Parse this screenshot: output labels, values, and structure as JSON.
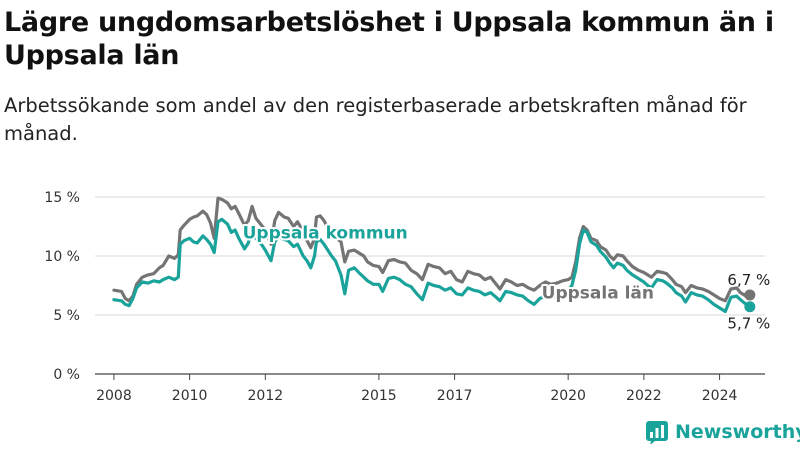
{
  "title": "Lägre ungdomsarbetslöshet i Uppsala kommun än i Uppsala län",
  "subtitle": "Arbetssökande som andel av den registerbaserade arbetskraften månad för månad.",
  "brand": {
    "name": "Newsworthy",
    "color": "#1aa39b"
  },
  "chart_data": {
    "type": "line",
    "x_unit": "year",
    "x_ticks": [
      "2008",
      "2010",
      "2012",
      "2015",
      "2017",
      "2020",
      "2022",
      "2024"
    ],
    "y_ticks": [
      "0 %",
      "5 %",
      "10 %",
      "15 %"
    ],
    "ylim": [
      0,
      15
    ],
    "xlim": [
      2007.5,
      2025.2
    ],
    "grid": true,
    "series": [
      {
        "name": "Uppsala län",
        "color": "#747474",
        "end_label": "6,7 %",
        "points": [
          [
            2008.0,
            7.1
          ],
          [
            2008.2,
            7.0
          ],
          [
            2008.3,
            6.4
          ],
          [
            2008.4,
            6.2
          ],
          [
            2008.5,
            6.6
          ],
          [
            2008.6,
            7.6
          ],
          [
            2008.75,
            8.2
          ],
          [
            2008.9,
            8.4
          ],
          [
            2009.05,
            8.5
          ],
          [
            2009.2,
            9.0
          ],
          [
            2009.3,
            9.2
          ],
          [
            2009.45,
            10.0
          ],
          [
            2009.6,
            9.8
          ],
          [
            2009.7,
            10.1
          ],
          [
            2009.75,
            12.2
          ],
          [
            2009.85,
            12.6
          ],
          [
            2010.0,
            13.1
          ],
          [
            2010.1,
            13.3
          ],
          [
            2010.2,
            13.4
          ],
          [
            2010.35,
            13.8
          ],
          [
            2010.45,
            13.5
          ],
          [
            2010.55,
            12.8
          ],
          [
            2010.65,
            11.5
          ],
          [
            2010.75,
            14.9
          ],
          [
            2010.85,
            14.8
          ],
          [
            2011.0,
            14.5
          ],
          [
            2011.1,
            14.0
          ],
          [
            2011.2,
            14.2
          ],
          [
            2011.3,
            13.6
          ],
          [
            2011.45,
            12.6
          ],
          [
            2011.55,
            13.0
          ],
          [
            2011.65,
            14.2
          ],
          [
            2011.75,
            13.2
          ],
          [
            2011.85,
            12.8
          ],
          [
            2012.0,
            12.2
          ],
          [
            2012.15,
            11.0
          ],
          [
            2012.25,
            13.0
          ],
          [
            2012.35,
            13.7
          ],
          [
            2012.5,
            13.3
          ],
          [
            2012.6,
            13.2
          ],
          [
            2012.75,
            12.5
          ],
          [
            2012.85,
            12.9
          ],
          [
            2013.0,
            12.1
          ],
          [
            2013.1,
            11.3
          ],
          [
            2013.2,
            10.7
          ],
          [
            2013.3,
            11.5
          ],
          [
            2013.35,
            13.3
          ],
          [
            2013.45,
            13.4
          ],
          [
            2013.55,
            13.0
          ],
          [
            2013.65,
            12.4
          ],
          [
            2013.75,
            12.0
          ],
          [
            2013.85,
            11.6
          ],
          [
            2014.0,
            11.2
          ],
          [
            2014.1,
            9.5
          ],
          [
            2014.2,
            10.4
          ],
          [
            2014.35,
            10.5
          ],
          [
            2014.5,
            10.2
          ],
          [
            2014.6,
            10.0
          ],
          [
            2014.7,
            9.5
          ],
          [
            2014.85,
            9.2
          ],
          [
            2015.0,
            9.1
          ],
          [
            2015.1,
            8.6
          ],
          [
            2015.25,
            9.6
          ],
          [
            2015.4,
            9.7
          ],
          [
            2015.55,
            9.5
          ],
          [
            2015.7,
            9.4
          ],
          [
            2015.85,
            8.8
          ],
          [
            2016.0,
            8.5
          ],
          [
            2016.15,
            8.0
          ],
          [
            2016.3,
            9.3
          ],
          [
            2016.45,
            9.1
          ],
          [
            2016.6,
            9.0
          ],
          [
            2016.75,
            8.5
          ],
          [
            2016.9,
            8.7
          ],
          [
            2017.05,
            8.0
          ],
          [
            2017.2,
            7.8
          ],
          [
            2017.35,
            8.7
          ],
          [
            2017.5,
            8.5
          ],
          [
            2017.65,
            8.4
          ],
          [
            2017.8,
            8.0
          ],
          [
            2017.95,
            8.2
          ],
          [
            2018.1,
            7.6
          ],
          [
            2018.2,
            7.2
          ],
          [
            2018.35,
            8.0
          ],
          [
            2018.5,
            7.8
          ],
          [
            2018.65,
            7.5
          ],
          [
            2018.8,
            7.6
          ],
          [
            2018.95,
            7.3
          ],
          [
            2019.1,
            7.1
          ],
          [
            2019.25,
            7.5
          ],
          [
            2019.4,
            7.8
          ],
          [
            2019.55,
            7.6
          ],
          [
            2019.7,
            7.7
          ],
          [
            2019.85,
            7.9
          ],
          [
            2020.0,
            8.0
          ],
          [
            2020.1,
            8.2
          ],
          [
            2020.2,
            9.5
          ],
          [
            2020.3,
            11.5
          ],
          [
            2020.4,
            12.5
          ],
          [
            2020.5,
            12.2
          ],
          [
            2020.6,
            11.5
          ],
          [
            2020.75,
            11.3
          ],
          [
            2020.85,
            10.8
          ],
          [
            2021.0,
            10.5
          ],
          [
            2021.1,
            10.0
          ],
          [
            2021.2,
            9.7
          ],
          [
            2021.3,
            10.1
          ],
          [
            2021.45,
            10.0
          ],
          [
            2021.55,
            9.6
          ],
          [
            2021.7,
            9.1
          ],
          [
            2021.85,
            8.8
          ],
          [
            2022.0,
            8.6
          ],
          [
            2022.1,
            8.4
          ],
          [
            2022.2,
            8.2
          ],
          [
            2022.35,
            8.7
          ],
          [
            2022.5,
            8.6
          ],
          [
            2022.6,
            8.5
          ],
          [
            2022.75,
            8.0
          ],
          [
            2022.85,
            7.6
          ],
          [
            2023.0,
            7.4
          ],
          [
            2023.1,
            6.9
          ],
          [
            2023.25,
            7.5
          ],
          [
            2023.4,
            7.3
          ],
          [
            2023.55,
            7.2
          ],
          [
            2023.7,
            7.0
          ],
          [
            2023.85,
            6.7
          ],
          [
            2024.0,
            6.4
          ],
          [
            2024.15,
            6.2
          ],
          [
            2024.3,
            7.2
          ],
          [
            2024.45,
            7.3
          ],
          [
            2024.55,
            6.9
          ],
          [
            2024.7,
            6.6
          ],
          [
            2024.8,
            6.7
          ]
        ]
      },
      {
        "name": "Uppsala kommun",
        "color": "#1aa39b",
        "end_label": "5,7 %",
        "points": [
          [
            2008.0,
            6.3
          ],
          [
            2008.2,
            6.2
          ],
          [
            2008.3,
            5.9
          ],
          [
            2008.4,
            5.8
          ],
          [
            2008.5,
            6.4
          ],
          [
            2008.6,
            7.3
          ],
          [
            2008.75,
            7.8
          ],
          [
            2008.9,
            7.7
          ],
          [
            2009.05,
            7.9
          ],
          [
            2009.2,
            7.8
          ],
          [
            2009.3,
            8.0
          ],
          [
            2009.45,
            8.2
          ],
          [
            2009.6,
            8.0
          ],
          [
            2009.7,
            8.2
          ],
          [
            2009.75,
            11.0
          ],
          [
            2009.85,
            11.3
          ],
          [
            2010.0,
            11.5
          ],
          [
            2010.1,
            11.2
          ],
          [
            2010.2,
            11.1
          ],
          [
            2010.35,
            11.7
          ],
          [
            2010.45,
            11.4
          ],
          [
            2010.55,
            11.0
          ],
          [
            2010.65,
            10.3
          ],
          [
            2010.75,
            12.9
          ],
          [
            2010.85,
            13.1
          ],
          [
            2011.0,
            12.7
          ],
          [
            2011.1,
            12.0
          ],
          [
            2011.2,
            12.2
          ],
          [
            2011.3,
            11.5
          ],
          [
            2011.45,
            10.6
          ],
          [
            2011.55,
            11.1
          ],
          [
            2011.65,
            12.3
          ],
          [
            2011.75,
            11.5
          ],
          [
            2011.85,
            11.2
          ],
          [
            2012.0,
            10.5
          ],
          [
            2012.15,
            9.6
          ],
          [
            2012.25,
            11.2
          ],
          [
            2012.35,
            11.6
          ],
          [
            2012.5,
            11.4
          ],
          [
            2012.6,
            11.3
          ],
          [
            2012.75,
            10.8
          ],
          [
            2012.85,
            11.0
          ],
          [
            2013.0,
            10.0
          ],
          [
            2013.1,
            9.6
          ],
          [
            2013.2,
            9.0
          ],
          [
            2013.3,
            10.0
          ],
          [
            2013.35,
            11.2
          ],
          [
            2013.45,
            11.4
          ],
          [
            2013.55,
            11.0
          ],
          [
            2013.65,
            10.5
          ],
          [
            2013.75,
            10.0
          ],
          [
            2013.85,
            9.6
          ],
          [
            2014.0,
            8.4
          ],
          [
            2014.1,
            6.8
          ],
          [
            2014.2,
            8.8
          ],
          [
            2014.35,
            9.0
          ],
          [
            2014.5,
            8.5
          ],
          [
            2014.6,
            8.2
          ],
          [
            2014.7,
            7.9
          ],
          [
            2014.85,
            7.6
          ],
          [
            2015.0,
            7.6
          ],
          [
            2015.1,
            7.0
          ],
          [
            2015.25,
            8.1
          ],
          [
            2015.4,
            8.2
          ],
          [
            2015.55,
            8.0
          ],
          [
            2015.7,
            7.6
          ],
          [
            2015.85,
            7.4
          ],
          [
            2016.0,
            6.8
          ],
          [
            2016.15,
            6.3
          ],
          [
            2016.3,
            7.7
          ],
          [
            2016.45,
            7.5
          ],
          [
            2016.6,
            7.4
          ],
          [
            2016.75,
            7.1
          ],
          [
            2016.9,
            7.3
          ],
          [
            2017.05,
            6.8
          ],
          [
            2017.2,
            6.7
          ],
          [
            2017.35,
            7.3
          ],
          [
            2017.5,
            7.1
          ],
          [
            2017.65,
            7.0
          ],
          [
            2017.8,
            6.7
          ],
          [
            2017.95,
            6.9
          ],
          [
            2018.1,
            6.5
          ],
          [
            2018.2,
            6.2
          ],
          [
            2018.35,
            7.0
          ],
          [
            2018.5,
            6.9
          ],
          [
            2018.65,
            6.7
          ],
          [
            2018.8,
            6.6
          ],
          [
            2018.95,
            6.2
          ],
          [
            2019.1,
            5.9
          ],
          [
            2019.25,
            6.4
          ],
          [
            2019.4,
            6.6
          ],
          [
            2019.55,
            6.5
          ],
          [
            2019.7,
            6.6
          ],
          [
            2019.85,
            7.0
          ],
          [
            2020.0,
            7.1
          ],
          [
            2020.1,
            7.5
          ],
          [
            2020.2,
            8.8
          ],
          [
            2020.3,
            11.0
          ],
          [
            2020.4,
            12.2
          ],
          [
            2020.5,
            12.0
          ],
          [
            2020.6,
            11.2
          ],
          [
            2020.75,
            10.9
          ],
          [
            2020.85,
            10.4
          ],
          [
            2021.0,
            9.9
          ],
          [
            2021.1,
            9.4
          ],
          [
            2021.2,
            9.0
          ],
          [
            2021.3,
            9.4
          ],
          [
            2021.45,
            9.2
          ],
          [
            2021.55,
            8.8
          ],
          [
            2021.7,
            8.4
          ],
          [
            2021.85,
            8.1
          ],
          [
            2022.0,
            7.8
          ],
          [
            2022.1,
            7.5
          ],
          [
            2022.2,
            7.3
          ],
          [
            2022.35,
            8.0
          ],
          [
            2022.5,
            7.9
          ],
          [
            2022.6,
            7.7
          ],
          [
            2022.75,
            7.3
          ],
          [
            2022.85,
            6.9
          ],
          [
            2023.0,
            6.6
          ],
          [
            2023.1,
            6.1
          ],
          [
            2023.25,
            6.9
          ],
          [
            2023.4,
            6.7
          ],
          [
            2023.55,
            6.6
          ],
          [
            2023.7,
            6.3
          ],
          [
            2023.85,
            5.9
          ],
          [
            2024.0,
            5.6
          ],
          [
            2024.15,
            5.3
          ],
          [
            2024.3,
            6.5
          ],
          [
            2024.45,
            6.6
          ],
          [
            2024.55,
            6.3
          ],
          [
            2024.7,
            5.9
          ],
          [
            2024.8,
            5.7
          ]
        ]
      }
    ],
    "annotations": [
      {
        "text": "Uppsala kommun",
        "series": 1,
        "x": 2011.4,
        "y": 11.5
      },
      {
        "text": "Uppsala län",
        "series": 0,
        "x": 2019.3,
        "y": 6.4
      }
    ]
  }
}
